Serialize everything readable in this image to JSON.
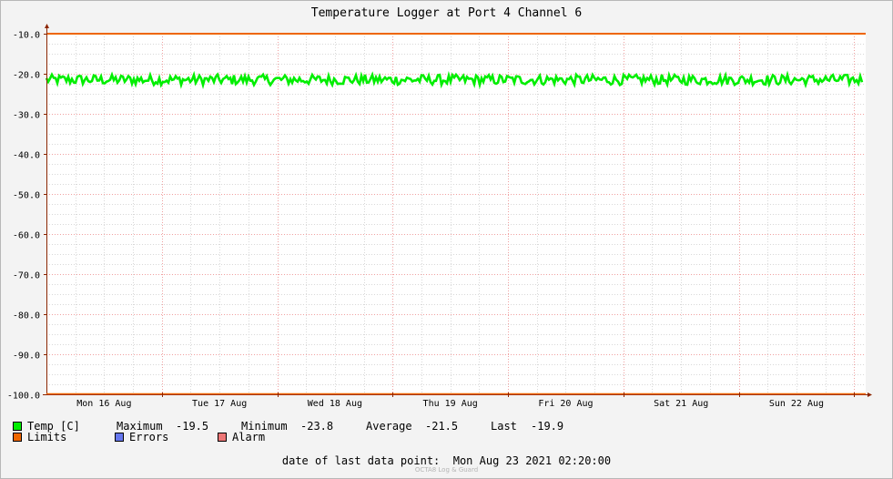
{
  "chart_data": {
    "type": "line",
    "title": "Temperature Logger at Port 4 Channel 6",
    "ylim": [
      -100,
      -10
    ],
    "yticks": [
      "-10.0",
      "-20.0",
      "-30.0",
      "-40.0",
      "-50.0",
      "-60.0",
      "-70.0",
      "-80.0",
      "-90.0",
      "-100.0"
    ],
    "xticks": [
      "Mon 16 Aug",
      "Tue 17 Aug",
      "Wed 18 Aug",
      "Thu 19 Aug",
      "Fri 20 Aug",
      "Sat 21 Aug",
      "Sun 22 Aug"
    ],
    "x_range_days": 7.1,
    "grid": true,
    "limit_value": -10,
    "series": [
      {
        "name": "Temp [C]",
        "color": "#00ee00",
        "center": -21.5,
        "min": -23.8,
        "max": -19.5
      },
      {
        "name": "Limits",
        "color": "#ee6600",
        "values": [
          -10,
          -100
        ]
      },
      {
        "name": "Errors",
        "color": "#6677ee"
      },
      {
        "name": "Alarm",
        "color": "#ee7777"
      }
    ]
  },
  "legend": {
    "temp_label": "Temp [C]",
    "maximum_label": "Maximum",
    "maximum_value": "-19.5",
    "minimum_label": "Minimum",
    "minimum_value": "-23.8",
    "average_label": "Average",
    "average_value": "-21.5",
    "last_label": "Last",
    "last_value": "-19.9",
    "limits_label": "Limits",
    "errors_label": "Errors",
    "alarm_label": "Alarm"
  },
  "footer": {
    "last_point_label": "date of last data point:",
    "last_point_value": "Mon Aug 23 2021 02:20:00",
    "watermark": "OCTA8 Log & Guard"
  },
  "colors": {
    "temp": "#00ee00",
    "limits": "#ee6600",
    "errors": "#6677ee",
    "alarm": "#ee7777",
    "axis": "#8b2500",
    "grid_major": "#f0a0a0",
    "grid_minor": "#d8d8d8"
  }
}
